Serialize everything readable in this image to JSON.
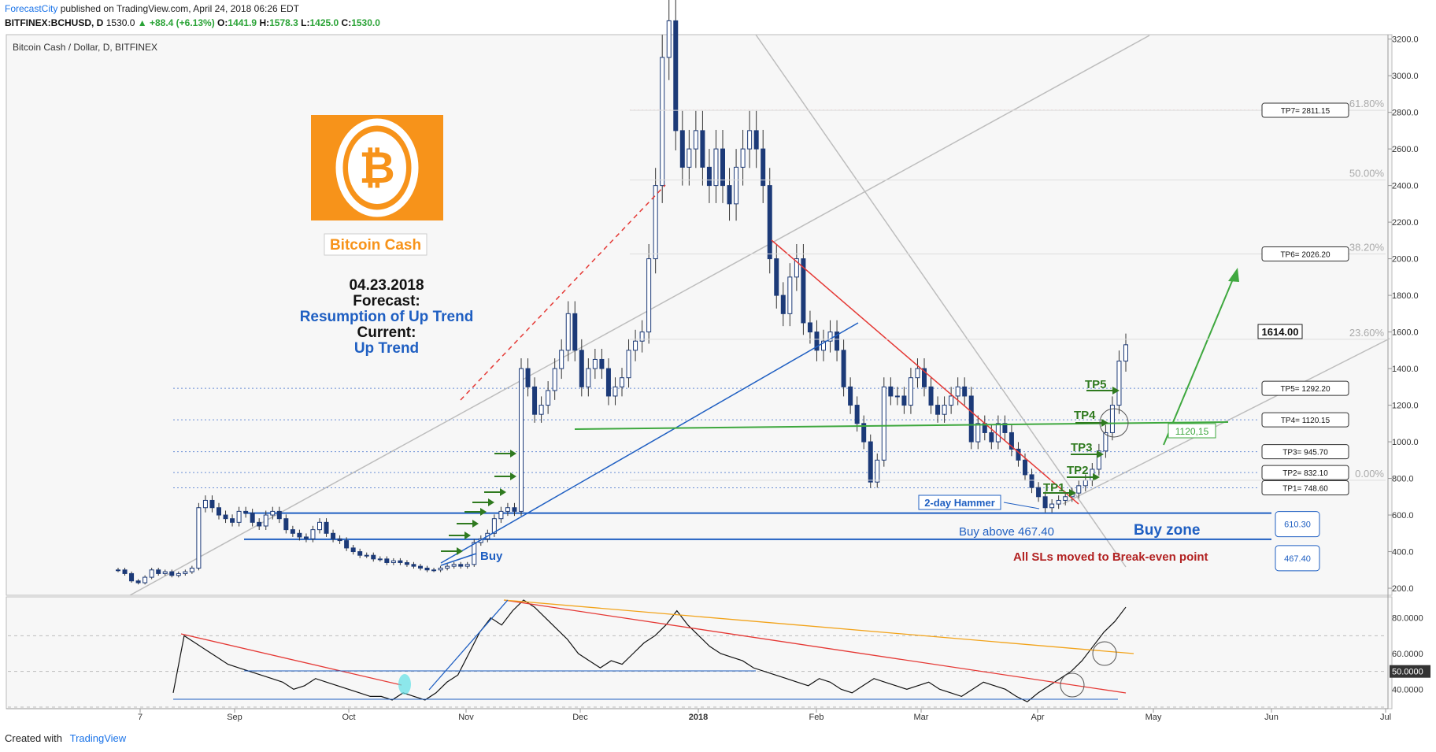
{
  "header": {
    "author": "ForecastCity",
    "published": "published on TradingView.com, April 24, 2018 06:26 EDT"
  },
  "ticker": {
    "symbol": "BITFINEX:BCHUSD, D",
    "last": "1530.0",
    "change": "+88.4 (+6.13%)",
    "o_label": "O:",
    "o": "1441.9",
    "h_label": "H:",
    "h": "1578.3",
    "l_label": "L:",
    "l": "1425.0",
    "c_label": "C:",
    "c": "1530.0"
  },
  "footer": {
    "created_with": "Created with",
    "brand": "TradingView"
  },
  "colors": {
    "up": "#2aa336",
    "blue": "#1f5fc2",
    "red": "#e53935",
    "green": "#3fa83f",
    "orange": "#f7931a",
    "darkgreen": "#2f7a1f"
  },
  "chart_data": [
    {
      "type": "candlestick",
      "title": "Bitcoin Cash / Dollar, D, BITFINEX",
      "y_ticks": [
        200,
        400,
        600,
        800,
        1000,
        1200,
        1400,
        1600,
        1800,
        2000,
        2200,
        2400,
        2600,
        2800,
        3000,
        3200
      ],
      "y_tick_labels": [
        "200.0",
        "400.0",
        "600.0",
        "800.0",
        "1000.0",
        "1200.0",
        "1400.0",
        "1600.0",
        "1800.0",
        "2000.0",
        "2200.0",
        "2400.0",
        "2600.0",
        "2800.0",
        "3000.0",
        "3200.0"
      ],
      "ylim": [
        170,
        3220
      ],
      "x_labels": [
        "7",
        "Sep",
        "Oct",
        "Nov",
        "Dec",
        "2018",
        "Feb",
        "Mar",
        "Apr",
        "May",
        "Jun",
        "Jul"
      ],
      "series_close": [
        300,
        280,
        240,
        230,
        260,
        300,
        280,
        290,
        270,
        280,
        290,
        310,
        640,
        680,
        640,
        600,
        580,
        560,
        620,
        610,
        560,
        540,
        600,
        620,
        580,
        520,
        500,
        480,
        470,
        520,
        560,
        500,
        470,
        460,
        420,
        400,
        380,
        380,
        360,
        360,
        340,
        350,
        340,
        330,
        320,
        310,
        300,
        300,
        310,
        320,
        330,
        320,
        330,
        450,
        470,
        500,
        580,
        620,
        640,
        620,
        1400,
        1300,
        1150,
        1200,
        1280,
        1400,
        1500,
        1700,
        1500,
        1300,
        1400,
        1450,
        1400,
        1250,
        1300,
        1350,
        1500,
        1550,
        1600,
        2000,
        2400,
        3100,
        3300,
        2700,
        2500,
        2600,
        2700,
        2500,
        2400,
        2600,
        2400,
        2300,
        2500,
        2600,
        2700,
        2600,
        2400,
        2000,
        1800,
        1700,
        1900,
        2000,
        1650,
        1600,
        1500,
        1550,
        1600,
        1500,
        1300,
        1200,
        1100,
        1000,
        780,
        900,
        1300,
        1250,
        1250,
        1200,
        1350,
        1400,
        1300,
        1200,
        1150,
        1200,
        1250,
        1300,
        1250,
        1000,
        1100,
        1050,
        1000,
        1100,
        1050,
        960,
        900,
        820,
        750,
        700,
        640,
        660,
        680,
        700,
        720,
        760,
        790,
        850,
        950,
        1050,
        1200,
        1441,
        1530
      ],
      "levels": [
        {
          "name": "TP1",
          "label": "TP1= 748.60",
          "value": 748.6
        },
        {
          "name": "TP2",
          "label": "TP2= 832.10",
          "value": 832.1
        },
        {
          "name": "TP3",
          "label": "TP3= 945.70",
          "value": 945.7
        },
        {
          "name": "TP4",
          "label": "TP4= 1120.15",
          "value": 1120.15
        },
        {
          "name": "TP5",
          "label": "TP5= 1292.20",
          "value": 1292.2
        },
        {
          "name": "TP6",
          "label": "TP6= 2026.20",
          "value": 2026.2
        },
        {
          "name": "TP7",
          "label": "TP7= 2811.15",
          "value": 2811.15
        }
      ],
      "fib_labels": [
        "61.80%",
        "50.00%",
        "38.20%",
        "23.60%",
        "0.00%"
      ],
      "price_marker": "1614.00",
      "buy_zone": {
        "top": 610.3,
        "bottom": 467.4,
        "top_label": "610.30",
        "bottom_label": "467.40"
      },
      "annotations": {
        "logo_name": "Bitcoin Cash",
        "date": "04.23.2018",
        "forecast_label": "Forecast:",
        "forecast_value": "Resumption of Up Trend",
        "current_label": "Current:",
        "current_value": "Up Trend",
        "tp1": "TP1",
        "tp2": "TP2",
        "tp3": "TP3",
        "tp4": "TP4",
        "tp5": "TP5",
        "level_1120": "1120,15",
        "hammer": "2-day Hammer",
        "buy_above": "Buy above 467.40",
        "buy_zone": "Buy zone",
        "sls": "All SLs moved to Break-even point",
        "buy": "Buy"
      }
    },
    {
      "type": "line",
      "y_tick_labels": [
        "40.0000",
        "50.0000",
        "60.0000",
        "80.0000"
      ],
      "ylim": [
        30,
        90
      ],
      "values": [
        38,
        70,
        66,
        62,
        58,
        54,
        52,
        50,
        48,
        46,
        44,
        40,
        42,
        46,
        44,
        42,
        40,
        38,
        36,
        36,
        34,
        38,
        36,
        34,
        38,
        44,
        48,
        60,
        72,
        80,
        76,
        84,
        90,
        86,
        80,
        74,
        68,
        60,
        56,
        52,
        56,
        54,
        60,
        66,
        70,
        76,
        84,
        76,
        70,
        64,
        60,
        58,
        56,
        52,
        50,
        48,
        46,
        44,
        42,
        46,
        44,
        40,
        38,
        42,
        46,
        44,
        42,
        40,
        42,
        44,
        40,
        38,
        36,
        40,
        44,
        42,
        40,
        36,
        33,
        38,
        42,
        46,
        50,
        56,
        64,
        72,
        78,
        86
      ]
    }
  ]
}
